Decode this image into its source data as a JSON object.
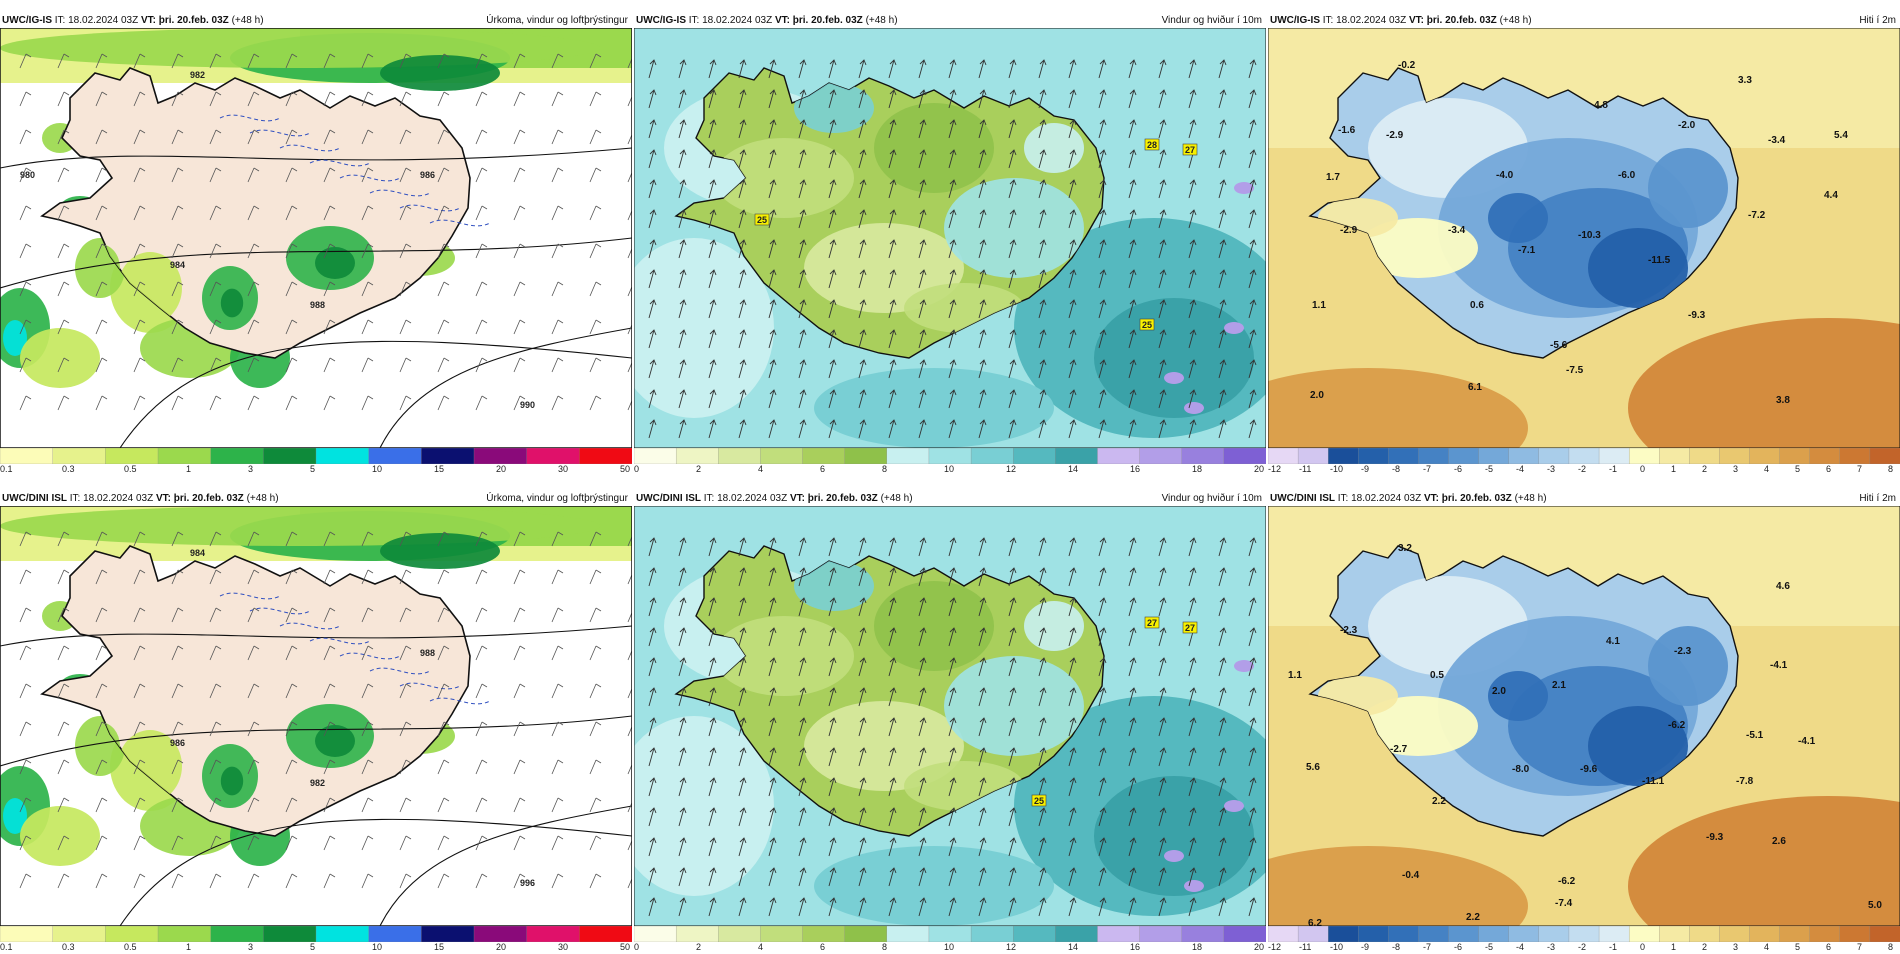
{
  "header_common": {
    "it": "IT: 18.02.2024 03Z",
    "vt": "VT: þri. 20.feb. 03Z",
    "lead": "(+48 h)"
  },
  "panels": [
    {
      "model": "UWC/IG-IS",
      "title": "Úrkoma, vindur og loftþrýstingur",
      "kind": "precip"
    },
    {
      "model": "UWC/IG-IS",
      "title": "Vindur og hviður í 10m",
      "kind": "wind"
    },
    {
      "model": "UWC/IG-IS",
      "title": "Hiti í 2m",
      "kind": "temp"
    },
    {
      "model": "UWC/DINI ISL",
      "title": "Úrkoma, vindur og loftþrýstingur",
      "kind": "precip"
    },
    {
      "model": "UWC/DINI ISL",
      "title": "Vindur og hviður í 10m",
      "kind": "wind"
    },
    {
      "model": "UWC/DINI ISL",
      "title": "Hiti í 2m",
      "kind": "temp"
    }
  ],
  "legends": {
    "precip": {
      "ticks": [
        "0.1",
        "0.3",
        "0.5",
        "1",
        "3",
        "5",
        "10",
        "15",
        "20",
        "30",
        "50"
      ],
      "colors": [
        "#fcfcb8",
        "#e6f28c",
        "#c6e85e",
        "#9bd94d",
        "#2db34a",
        "#0e8a3a",
        "#00e3e0",
        "#3a6fe8",
        "#0b1070",
        "#8a0a7a",
        "#e0116a",
        "#f00a14"
      ]
    },
    "wind": {
      "ticks": [
        "0",
        "2",
        "4",
        "6",
        "8",
        "10",
        "12",
        "14",
        "16",
        "18",
        "20"
      ],
      "colors": [
        "#fbfde8",
        "#eef5c4",
        "#d8e9a0",
        "#c1de7c",
        "#a9cf5c",
        "#8fc14a",
        "#c8f0f0",
        "#9fe2e4",
        "#79cfd4",
        "#55b9bf",
        "#3aa2a8",
        "#cbb8f0",
        "#b29ee8",
        "#9880de",
        "#7e60d4"
      ]
    },
    "temp": {
      "ticks": [
        "-12",
        "-11",
        "-10",
        "-9",
        "-8",
        "-7",
        "-6",
        "-5",
        "-4",
        "-3",
        "-2",
        "-1",
        "0",
        "1",
        "2",
        "3",
        "4",
        "5",
        "6",
        "7",
        "8"
      ],
      "colors": [
        "#e6d8f5",
        "#d2c6f0",
        "#1a4f9a",
        "#2460aa",
        "#3270b8",
        "#4582c4",
        "#5b95cf",
        "#74a8d9",
        "#8fbbe2",
        "#a9cdea",
        "#c3ddf0",
        "#dcecf4",
        "#fcfcc4",
        "#f5eaa4",
        "#efda88",
        "#e9c870",
        "#e3b45c",
        "#dba04c",
        "#d48c3e",
        "#cc7832",
        "#c2642a"
      ]
    }
  },
  "labels": {
    "gust_ig": [
      "28",
      "27",
      "25",
      "25"
    ],
    "gust_dini": [
      "27",
      "27",
      "25"
    ],
    "temp_ig": [
      "-0.2",
      "3.3",
      "-1.6",
      "-2.9",
      "4.8",
      "-2.0",
      "-3.4",
      "5.4",
      "1.7",
      "-4.0",
      "-6.0",
      "4.4",
      "-2.9",
      "-3.4",
      "-7.1",
      "-10.3",
      "-11.5",
      "-7.2",
      "1.1",
      "0.6",
      "-9.3",
      "-5.6",
      "-7.5",
      "2.0",
      "6.1",
      "3.8"
    ],
    "temp_dini": [
      "3.2",
      "4.6",
      "-2.3",
      "4.1",
      "-2.3",
      "-4.1",
      "1.1",
      "0.5",
      "2.0",
      "2.1",
      "-6.2",
      "-5.1",
      "-4.1",
      "-2.7",
      "5.6",
      "-8.0",
      "-9.6",
      "-11.1",
      "-7.8",
      "2.2",
      "-9.3",
      "2.6",
      "-0.4",
      "-6.2",
      "-7.4",
      "6.2",
      "2.2",
      "5.0"
    ],
    "isobars_ig": [
      "982",
      "984",
      "986",
      "988",
      "990",
      "980"
    ],
    "isobars_dini": [
      "984",
      "986",
      "988",
      "982",
      "996"
    ]
  }
}
